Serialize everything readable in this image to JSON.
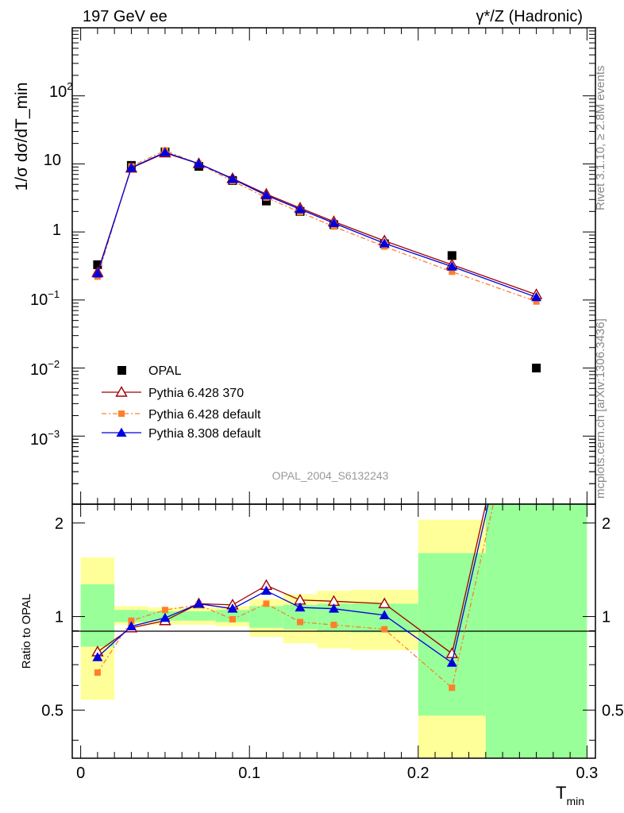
{
  "header": {
    "left": "197 GeV ee",
    "right": "γ*/Z (Hadronic)"
  },
  "side_labels": {
    "rivet": "Rivet 3.1.10, ≥ 2.8M events",
    "mcplots": "mcplots.cern.ch [arXiv:1306.3436]"
  },
  "analysis_id": "OPAL_2004_S6132243",
  "chart_data": [
    {
      "type": "line",
      "panel": "main",
      "ylabel": "1/σ dσ/dT_min",
      "yscale": "log",
      "ylim": [
        0.0001,
        1000
      ],
      "xlim": [
        -0.005,
        0.305
      ],
      "ytick_labels": {
        "t1": "10",
        "t2": "1",
        "t100": "10",
        "t100_exp": "2",
        "t01": "10",
        "t01_exp": "−1",
        "t001": "10",
        "t001_exp": "−2",
        "t0001": "10",
        "t0001_exp": "−3"
      },
      "legend_placement": "bottom-left",
      "series": [
        {
          "name": "OPAL",
          "color": "#000000",
          "marker": "square",
          "x": [
            0.01,
            0.03,
            0.05,
            0.07,
            0.09,
            0.11,
            0.13,
            0.15,
            0.18,
            0.22,
            0.27
          ],
          "y": [
            0.33,
            9.5,
            15.0,
            9.2,
            5.7,
            2.85,
            2.0,
            1.28,
            0.67,
            0.45,
            0.01
          ]
        },
        {
          "name": "Pythia 6.428 370",
          "color": "#a00000",
          "marker": "triangle-open",
          "x": [
            0.01,
            0.03,
            0.05,
            0.07,
            0.09,
            0.11,
            0.13,
            0.15,
            0.18,
            0.22,
            0.27
          ],
          "y": [
            0.255,
            8.7,
            14.5,
            10.1,
            6.1,
            3.6,
            2.25,
            1.42,
            0.74,
            0.33,
            0.12
          ]
        },
        {
          "name": "Pythia 6.428 default",
          "color": "#ff7f2a",
          "marker": "square-small",
          "dashed": true,
          "x": [
            0.01,
            0.03,
            0.05,
            0.07,
            0.09,
            0.11,
            0.13,
            0.15,
            0.18,
            0.22,
            0.27
          ],
          "y": [
            0.22,
            9.2,
            15.7,
            10.0,
            5.6,
            3.2,
            1.95,
            1.2,
            0.61,
            0.26,
            0.095
          ]
        },
        {
          "name": "Pythia 8.308 default",
          "color": "#0000e0",
          "marker": "triangle-filled",
          "x": [
            0.01,
            0.03,
            0.05,
            0.07,
            0.09,
            0.11,
            0.13,
            0.15,
            0.18,
            0.22,
            0.27
          ],
          "y": [
            0.245,
            8.8,
            14.8,
            10.1,
            6.0,
            3.45,
            2.15,
            1.35,
            0.68,
            0.31,
            0.11
          ]
        }
      ]
    },
    {
      "type": "line",
      "panel": "ratio",
      "ylabel": "Ratio to OPAL",
      "xlabel": "T",
      "xlabel_sub": "min",
      "yscale": "log",
      "ylim": [
        0.35,
        2.3
      ],
      "xlim": [
        -0.005,
        0.305
      ],
      "xticks": [
        0,
        0.1,
        0.2,
        0.3
      ],
      "xtick_labels": [
        "0",
        "0.1",
        "0.2",
        "0.3"
      ],
      "yticks": [
        0.5,
        1,
        2
      ],
      "ytick_labels": [
        "0.5",
        "1",
        "2"
      ],
      "bands": [
        {
          "x0": 0.0,
          "x1": 0.02,
          "y_in": [
            0.8,
            1.27
          ],
          "y_out": [
            0.54,
            1.55
          ]
        },
        {
          "x0": 0.02,
          "x1": 0.04,
          "y_in": [
            0.96,
            1.05
          ],
          "y_out": [
            0.94,
            1.08
          ]
        },
        {
          "x0": 0.04,
          "x1": 0.06,
          "y_in": [
            0.97,
            1.04
          ],
          "y_out": [
            0.94,
            1.07
          ]
        },
        {
          "x0": 0.06,
          "x1": 0.08,
          "y_in": [
            0.97,
            1.04
          ],
          "y_out": [
            0.94,
            1.07
          ]
        },
        {
          "x0": 0.08,
          "x1": 0.1,
          "y_in": [
            0.96,
            1.05
          ],
          "y_out": [
            0.93,
            1.08
          ]
        },
        {
          "x0": 0.1,
          "x1": 0.12,
          "y_in": [
            0.92,
            1.08
          ],
          "y_out": [
            0.86,
            1.14
          ]
        },
        {
          "x0": 0.12,
          "x1": 0.14,
          "y_in": [
            0.91,
            1.09
          ],
          "y_out": [
            0.82,
            1.18
          ]
        },
        {
          "x0": 0.14,
          "x1": 0.16,
          "y_in": [
            0.9,
            1.1
          ],
          "y_out": [
            0.79,
            1.21
          ]
        },
        {
          "x0": 0.16,
          "x1": 0.2,
          "y_in": [
            0.89,
            1.1
          ],
          "y_out": [
            0.78,
            1.22
          ]
        },
        {
          "x0": 0.2,
          "x1": 0.24,
          "y_in": [
            0.48,
            1.6
          ],
          "y_out": [
            0.3,
            2.05
          ]
        },
        {
          "x0": 0.24,
          "x1": 0.3,
          "y_in": [
            0.3,
            2.5
          ],
          "y_out": [
            0.3,
            2.5
          ]
        }
      ],
      "series": [
        {
          "name": "Pythia 6.428 370",
          "color": "#a00000",
          "marker": "triangle-open",
          "x": [
            0.01,
            0.03,
            0.05,
            0.07,
            0.09,
            0.11,
            0.13,
            0.15,
            0.18,
            0.22,
            0.27
          ],
          "y": [
            0.77,
            0.92,
            0.97,
            1.1,
            1.09,
            1.26,
            1.13,
            1.12,
            1.1,
            0.76,
            12.0
          ]
        },
        {
          "name": "Pythia 6.428 default",
          "color": "#ff7f2a",
          "marker": "square-small",
          "dashed": true,
          "x": [
            0.01,
            0.03,
            0.05,
            0.07,
            0.09,
            0.11,
            0.13,
            0.15,
            0.18,
            0.22,
            0.27
          ],
          "y": [
            0.66,
            0.97,
            1.05,
            1.09,
            0.98,
            1.1,
            0.96,
            0.94,
            0.91,
            0.59,
            9.5
          ]
        },
        {
          "name": "Pythia 8.308 default",
          "color": "#0000e0",
          "marker": "triangle-filled",
          "x": [
            0.01,
            0.03,
            0.05,
            0.07,
            0.09,
            0.11,
            0.13,
            0.15,
            0.18,
            0.22,
            0.27
          ],
          "y": [
            0.74,
            0.93,
            0.99,
            1.1,
            1.06,
            1.21,
            1.07,
            1.06,
            1.01,
            0.71,
            11.0
          ]
        }
      ]
    }
  ]
}
